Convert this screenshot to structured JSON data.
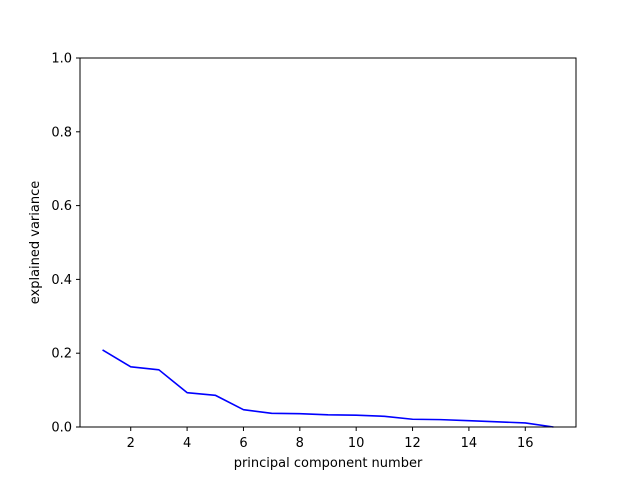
{
  "chart_data": {
    "type": "line",
    "title": "",
    "xlabel": "principal component number",
    "ylabel": "explained variance",
    "xlim": [
      0.2,
      17.8
    ],
    "ylim": [
      0,
      1.0
    ],
    "x_ticks": [
      2,
      4,
      6,
      8,
      10,
      12,
      14,
      16
    ],
    "x_tick_labels": [
      "2",
      "4",
      "6",
      "8",
      "10",
      "12",
      "14",
      "16"
    ],
    "y_ticks": [
      0,
      0.2,
      0.4,
      0.6,
      0.8,
      1.0
    ],
    "y_tick_labels": [
      "0.0",
      "0.2",
      "0.4",
      "0.6",
      "0.8",
      "1.0"
    ],
    "grid": false,
    "legend": "none",
    "series": [
      {
        "color": "#0000ff",
        "x": [
          1,
          2,
          3,
          4,
          5,
          6,
          7,
          8,
          9,
          10,
          11,
          12,
          13,
          14,
          15,
          16,
          17
        ],
        "y": [
          0.209,
          0.163,
          0.155,
          0.093,
          0.086,
          0.047,
          0.037,
          0.036,
          0.033,
          0.032,
          0.029,
          0.021,
          0.02,
          0.017,
          0.014,
          0.011,
          0.0
        ]
      }
    ]
  }
}
